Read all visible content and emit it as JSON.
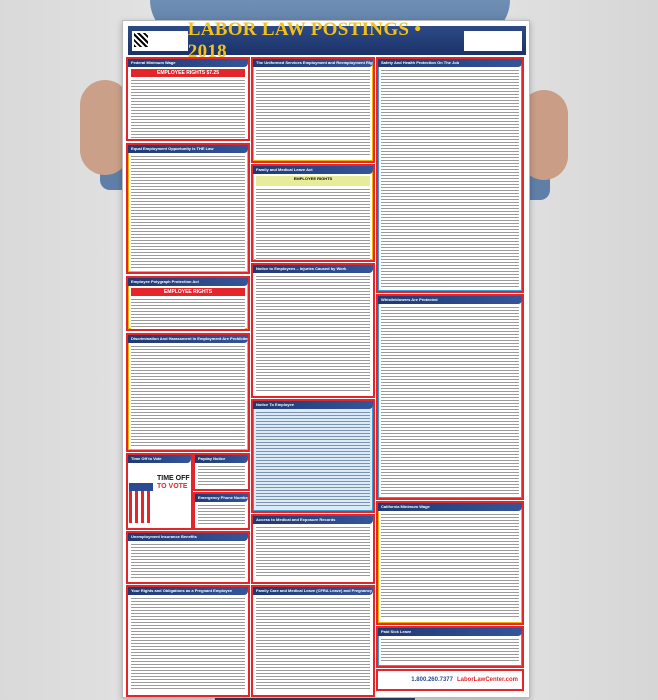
{
  "poster": {
    "title": "LABOR LAW POSTINGS • 2018",
    "sections": [
      {
        "title": "Federal Minimum Wage",
        "banner": "EMPLOYEE RIGHTS",
        "rate": "$7.25"
      },
      {
        "title": "The Uniformed Services Employment and Reemployment Rights Act"
      },
      {
        "title": "Safety And Health Protection On The Job"
      },
      {
        "title": "Equal Employment Opportunity is THE Law"
      },
      {
        "title": "Family and Medical Leave Act",
        "banner": "EMPLOYEE RIGHTS"
      },
      {
        "title": "Employee Polygraph Protection Act",
        "banner": "EMPLOYEE RIGHTS"
      },
      {
        "title": "Notice to Employees – Injuries Caused by Work"
      },
      {
        "title": "Whistleblowers Are Protected"
      },
      {
        "title": "Discrimination And Harassment In Employment Are Prohibited By Law"
      },
      {
        "title": "Notice To Employee"
      },
      {
        "title": "Time Off to Vote",
        "headline1": "TIME OFF",
        "headline2": "TO VOTE"
      },
      {
        "title": "Payday Notice"
      },
      {
        "title": "Emergency Phone Numbers"
      },
      {
        "title": "Access to Medical and Exposure Records"
      },
      {
        "title": "California Minimum Wage"
      },
      {
        "title": "Unemployment Insurance Benefits"
      },
      {
        "title": "Your Rights and Obligations as a Pregnant Employee"
      },
      {
        "title": "Family Care and Medical Leave (CFRA Leave) and Pregnancy Disability Leave"
      },
      {
        "title": "Paid Sick Leave"
      }
    ],
    "footer": {
      "phone": "1.800.260.7377",
      "logo": "LaborLawCenter.com"
    }
  },
  "colors": {
    "header_bg": "#1f3a73",
    "title": "#f2c21a",
    "border": "#e4262b"
  }
}
